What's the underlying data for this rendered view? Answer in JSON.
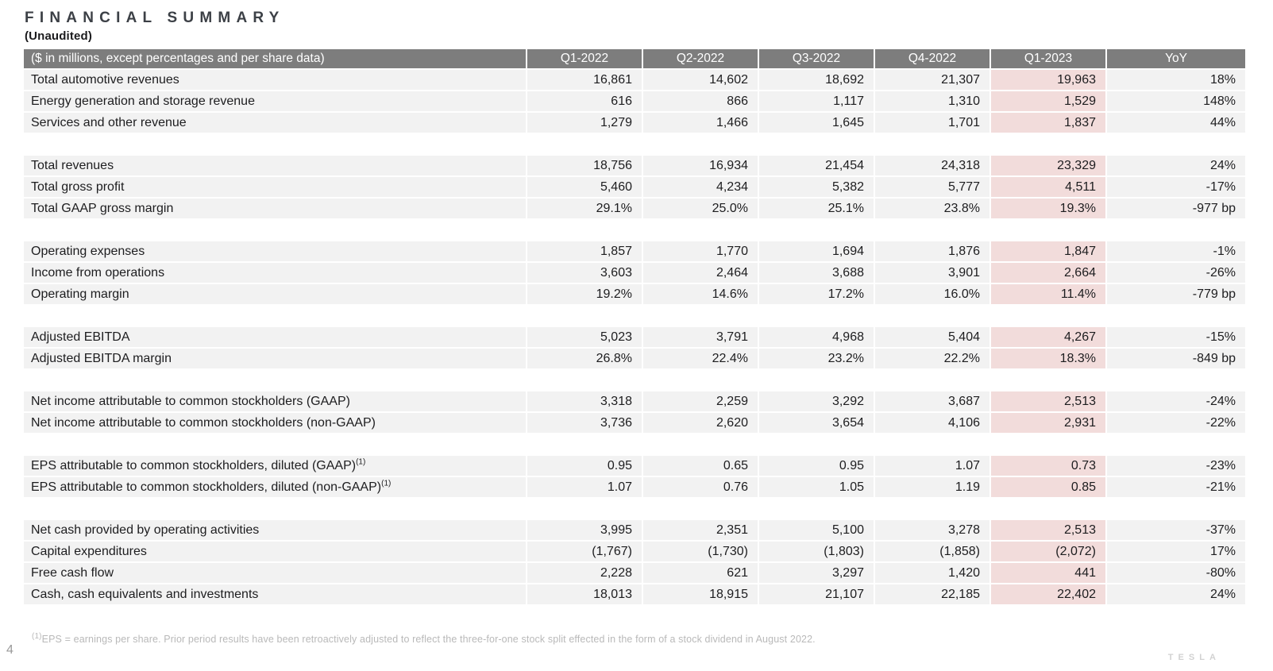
{
  "title": "FINANCIAL SUMMARY",
  "subtitle": "(Unaudited)",
  "page_number": "4",
  "brand": "TESLA",
  "footnote": {
    "marker": "(1)",
    "text": "EPS = earnings per share. Prior period results have been retroactively adjusted to reflect the three-for-one stock split effected in the form of a stock dividend in August 2022."
  },
  "colors": {
    "header_bg": "#7d7d7d",
    "header_text": "#ffffff",
    "row_bg": "#f2f2f2",
    "highlight_bg": "#f2dcdb",
    "title_text": "#3c4046",
    "footnote_text": "#b9b9b9"
  },
  "table": {
    "header": [
      "($ in millions, except percentages and per share data)",
      "Q1-2022",
      "Q2-2022",
      "Q3-2022",
      "Q4-2022",
      "Q1-2023",
      "YoY"
    ],
    "highlight_column_label": "Q1-2023",
    "highlight_value_index": 4,
    "groups": [
      {
        "rows": [
          {
            "label": "Total automotive revenues",
            "values": [
              "16,861",
              "14,602",
              "18,692",
              "21,307",
              "19,963",
              "18%"
            ]
          },
          {
            "label": "Energy generation and storage revenue",
            "values": [
              "616",
              "866",
              "1,117",
              "1,310",
              "1,529",
              "148%"
            ]
          },
          {
            "label": "Services and other revenue",
            "values": [
              "1,279",
              "1,466",
              "1,645",
              "1,701",
              "1,837",
              "44%"
            ]
          }
        ]
      },
      {
        "rows": [
          {
            "label": "Total revenues",
            "values": [
              "18,756",
              "16,934",
              "21,454",
              "24,318",
              "23,329",
              "24%"
            ]
          },
          {
            "label": "Total gross profit",
            "values": [
              "5,460",
              "4,234",
              "5,382",
              "5,777",
              "4,511",
              "-17%"
            ]
          },
          {
            "label": "Total GAAP gross margin",
            "values": [
              "29.1%",
              "25.0%",
              "25.1%",
              "23.8%",
              "19.3%",
              "-977 bp"
            ]
          }
        ]
      },
      {
        "rows": [
          {
            "label": "Operating expenses",
            "values": [
              "1,857",
              "1,770",
              "1,694",
              "1,876",
              "1,847",
              "-1%"
            ]
          },
          {
            "label": "Income from operations",
            "values": [
              "3,603",
              "2,464",
              "3,688",
              "3,901",
              "2,664",
              "-26%"
            ]
          },
          {
            "label": "Operating margin",
            "values": [
              "19.2%",
              "14.6%",
              "17.2%",
              "16.0%",
              "11.4%",
              "-779 bp"
            ]
          }
        ]
      },
      {
        "rows": [
          {
            "label": "Adjusted EBITDA",
            "values": [
              "5,023",
              "3,791",
              "4,968",
              "5,404",
              "4,267",
              "-15%"
            ]
          },
          {
            "label": "Adjusted EBITDA margin",
            "values": [
              "26.8%",
              "22.4%",
              "23.2%",
              "22.2%",
              "18.3%",
              "-849 bp"
            ]
          }
        ]
      },
      {
        "rows": [
          {
            "label": "Net income attributable to common stockholders (GAAP)",
            "values": [
              "3,318",
              "2,259",
              "3,292",
              "3,687",
              "2,513",
              "-24%"
            ]
          },
          {
            "label": "Net income attributable to common stockholders (non-GAAP)",
            "values": [
              "3,736",
              "2,620",
              "3,654",
              "4,106",
              "2,931",
              "-22%"
            ]
          }
        ]
      },
      {
        "rows": [
          {
            "label": "EPS attributable to common stockholders, diluted (GAAP)",
            "sup": "(1)",
            "values": [
              "0.95",
              "0.65",
              "0.95",
              "1.07",
              "0.73",
              "-23%"
            ]
          },
          {
            "label": "EPS attributable to common stockholders, diluted (non-GAAP)",
            "sup": "(1)",
            "values": [
              "1.07",
              "0.76",
              "1.05",
              "1.19",
              "0.85",
              "-21%"
            ]
          }
        ]
      },
      {
        "rows": [
          {
            "label": "Net cash provided by operating activities",
            "values": [
              "3,995",
              "2,351",
              "5,100",
              "3,278",
              "2,513",
              "-37%"
            ]
          },
          {
            "label": "Capital expenditures",
            "values": [
              "(1,767)",
              "(1,730)",
              "(1,803)",
              "(1,858)",
              "(2,072)",
              "17%"
            ]
          },
          {
            "label": "Free cash flow",
            "values": [
              "2,228",
              "621",
              "3,297",
              "1,420",
              "441",
              "-80%"
            ]
          },
          {
            "label": "Cash, cash equivalents and investments",
            "values": [
              "18,013",
              "18,915",
              "21,107",
              "22,185",
              "22,402",
              "24%"
            ]
          }
        ]
      }
    ]
  }
}
